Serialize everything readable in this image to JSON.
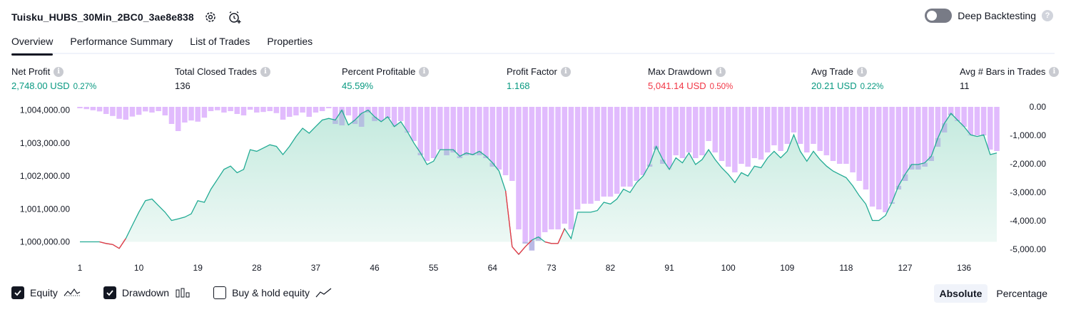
{
  "header": {
    "title": "Tuisku_HUBS_30Min_2BC0_3ae8e838",
    "settings_icon": "gear-icon",
    "add_alert_icon": "alarm-add-icon"
  },
  "deep_backtesting": {
    "label": "Deep Backtesting",
    "enabled": false,
    "help_icon": "question-icon"
  },
  "tabs": [
    {
      "label": "Overview",
      "active": true
    },
    {
      "label": "Performance Summary",
      "active": false
    },
    {
      "label": "List of Trades",
      "active": false
    },
    {
      "label": "Properties",
      "active": false
    }
  ],
  "metrics": [
    {
      "label": "Net Profit",
      "value": "2,748.00 USD",
      "pct": "0.27%",
      "color": "green"
    },
    {
      "label": "Total Closed Trades",
      "value": "136",
      "pct": "",
      "color": "plain"
    },
    {
      "label": "Percent Profitable",
      "value": "45.59%",
      "pct": "",
      "color": "green"
    },
    {
      "label": "Profit Factor",
      "value": "1.168",
      "pct": "",
      "color": "green"
    },
    {
      "label": "Max Drawdown",
      "value": "5,041.14 USD",
      "pct": "0.50%",
      "color": "red"
    },
    {
      "label": "Avg Trade",
      "value": "20.21 USD",
      "pct": "0.22%",
      "color": "green"
    },
    {
      "label": "Avg # Bars in Trades",
      "value": "11",
      "pct": "",
      "color": "plain"
    }
  ],
  "colors": {
    "equity_line": "#22ab94",
    "equity_fill": "#c8ebe1",
    "equity_below": "#f23645",
    "drawdown_bar": "#e1bbfd",
    "overlap_bar": "#b3b8e0",
    "accent": "#131722"
  },
  "chart_data": {
    "type": "area",
    "x_ticks": [
      "1",
      "10",
      "19",
      "28",
      "37",
      "46",
      "55",
      "64",
      "73",
      "82",
      "91",
      "100",
      "109",
      "118",
      "127",
      "136"
    ],
    "left_axis": {
      "ticks": [
        "1,004,000.00",
        "1,003,000.00",
        "1,002,000.00",
        "1,001,000.00",
        "1,000,000.00"
      ],
      "ylim": [
        999600,
        1004100
      ]
    },
    "right_axis": {
      "ticks": [
        "0.00",
        "-1,000.00",
        "-2,000.00",
        "-3,000.00",
        "-4,000.00",
        "-5,000.00"
      ],
      "ylim": [
        -5200,
        0
      ]
    },
    "series": [
      {
        "name": "Equity",
        "values": [
          1000000,
          1000000,
          1000000,
          1000000,
          999950,
          999920,
          999800,
          1000100,
          1000500,
          1000900,
          1001250,
          1001300,
          1001100,
          1000900,
          1000650,
          1000700,
          1000750,
          1000850,
          1001250,
          1001200,
          1001600,
          1001900,
          1002200,
          1002300,
          1002100,
          1002200,
          1002800,
          1002750,
          1002850,
          1002950,
          1002900,
          1002650,
          1002900,
          1003200,
          1003450,
          1003300,
          1003500,
          1003700,
          1003750,
          1003700,
          1004000,
          1003550,
          1003700,
          1003900,
          1004000,
          1003800,
          1003650,
          1003800,
          1003500,
          1003650,
          1003350,
          1003000,
          1002700,
          1002350,
          1002450,
          1002800,
          1002800,
          1002800,
          1002600,
          1002700,
          1002650,
          1002750,
          1002600,
          1002400,
          1002150,
          1001550,
          999850,
          999620,
          999850,
          1000050,
          1000150,
          1000000,
          999950,
          999950,
          1000400,
          1000100,
          1000900,
          1000900,
          1000900,
          1000950,
          1001200,
          1001150,
          1001300,
          1001600,
          1001500,
          1001800,
          1002000,
          1002350,
          1002900,
          1002500,
          1002200,
          1002550,
          1002400,
          1002700,
          1002350,
          1002500,
          1002800,
          1002500,
          1002250,
          1002050,
          1001800,
          1002100,
          1002000,
          1002300,
          1002250,
          1002550,
          1002750,
          1002550,
          1002750,
          1003250,
          1002750,
          1002450,
          1002750,
          1002500,
          1002300,
          1002150,
          1002050,
          1001950,
          1001700,
          1001400,
          1001150,
          1000650,
          1000650,
          1000800,
          1001200,
          1001700,
          1002050,
          1002350,
          1002350,
          1002400,
          1002600,
          1003150,
          1003600,
          1003900,
          1003700,
          1003500,
          1003250,
          1003200,
          1003250,
          1002650,
          1002700
        ]
      },
      {
        "name": "Drawdown",
        "values": [
          -50,
          -80,
          -120,
          -160,
          -250,
          -320,
          -420,
          -450,
          -340,
          -280,
          -160,
          -200,
          -150,
          -300,
          -600,
          -850,
          -550,
          -480,
          -520,
          -380,
          -150,
          -120,
          -200,
          -150,
          -250,
          -300,
          -100,
          -200,
          -180,
          -150,
          -220,
          -450,
          -350,
          -300,
          -200,
          -350,
          -200,
          -150,
          -50,
          -600,
          -650,
          -300,
          -600,
          -700,
          -200,
          -500,
          -500,
          -400,
          -700,
          -500,
          -900,
          -1200,
          -1700,
          -1900,
          -1800,
          -1500,
          -1700,
          -1600,
          -1800,
          -1700,
          -1700,
          -1700,
          -1800,
          -2100,
          -2200,
          -2400,
          -2600,
          -4300,
          -4800,
          -5041,
          -4700,
          -4400,
          -4300,
          -4300,
          -4100,
          -4300,
          -3600,
          -3400,
          -3400,
          -3300,
          -3150,
          -3150,
          -3050,
          -2800,
          -2800,
          -2600,
          -2400,
          -2100,
          -1500,
          -2000,
          -2200,
          -1700,
          -1800,
          -1600,
          -1800,
          -1700,
          -1200,
          -1600,
          -1900,
          -2100,
          -2300,
          -2000,
          -2100,
          -1800,
          -1850,
          -1600,
          -1350,
          -1550,
          -1300,
          -900,
          -1300,
          -1600,
          -1300,
          -1550,
          -1700,
          -1900,
          -2000,
          -2000,
          -2300,
          -2600,
          -2900,
          -3500,
          -3600,
          -3700,
          -3400,
          -2900,
          -2600,
          -2200,
          -2200,
          -2100,
          -1900,
          -1400,
          -900,
          -300,
          -500,
          -700,
          -1000,
          -1000,
          -1000,
          -1500,
          -1550
        ]
      }
    ],
    "legend": [
      {
        "label": "Equity",
        "checked": true,
        "icon": "equity-line-icon"
      },
      {
        "label": "Drawdown",
        "checked": true,
        "icon": "drawdown-bars-icon"
      },
      {
        "label": "Buy & hold equity",
        "checked": false,
        "icon": "buy-hold-line-icon"
      }
    ],
    "mode_buttons": [
      {
        "label": "Absolute",
        "active": true
      },
      {
        "label": "Percentage",
        "active": false
      }
    ]
  }
}
